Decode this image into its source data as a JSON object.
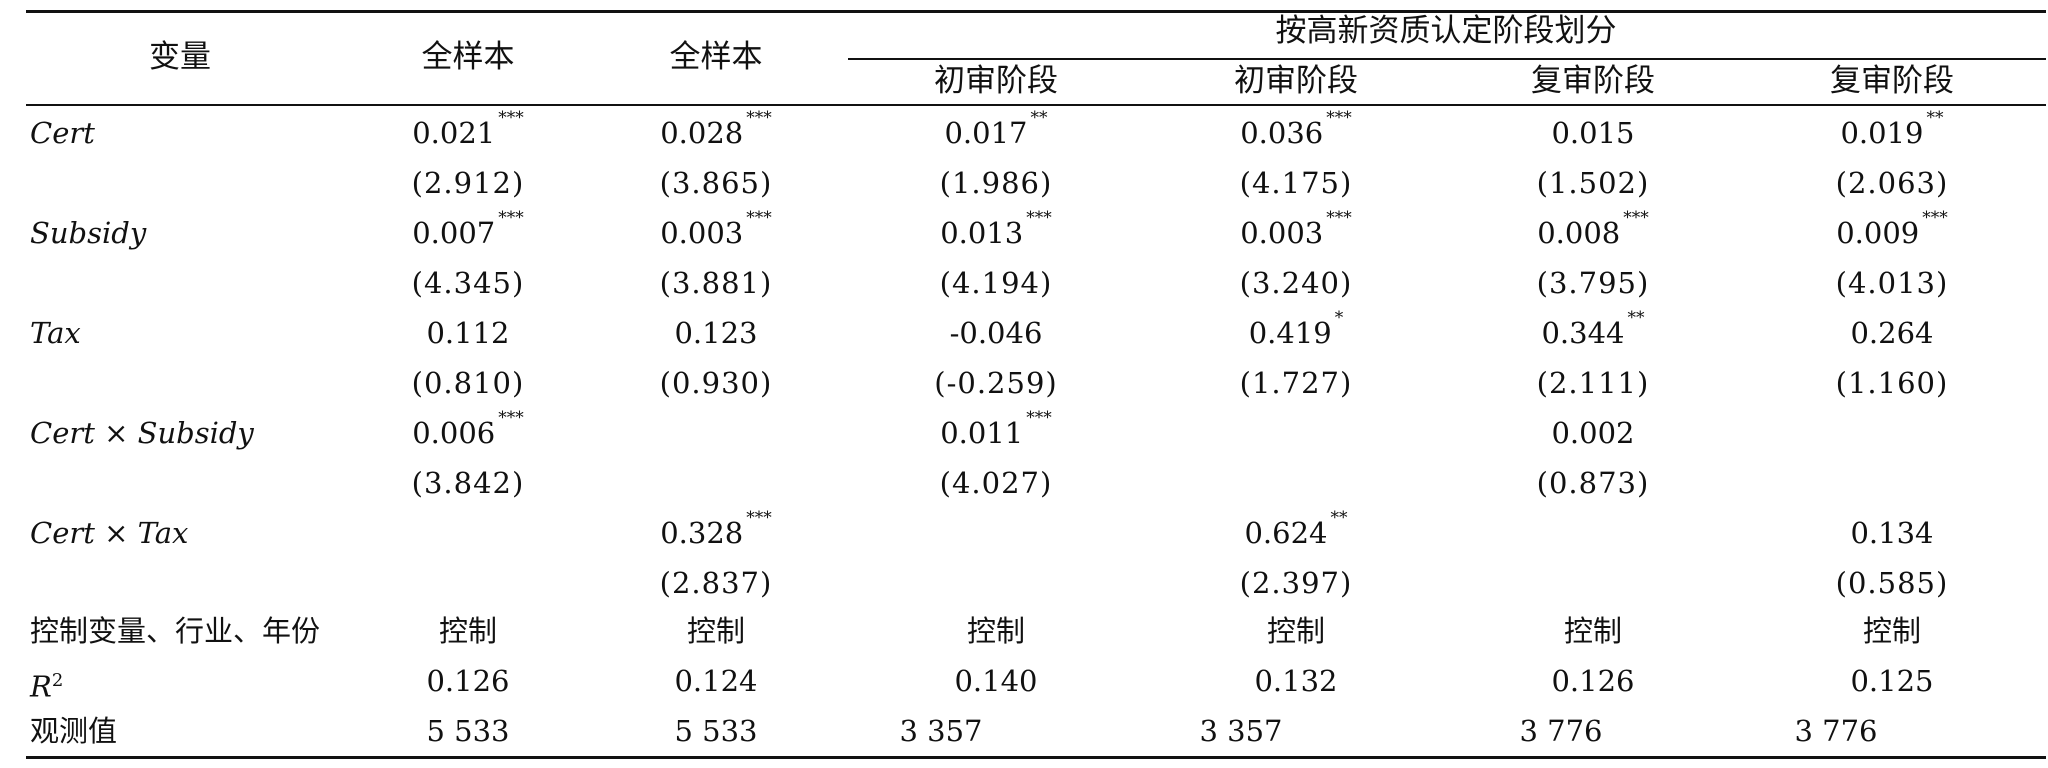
{
  "header": {
    "variable": "变量",
    "full_sample_1": "全样本",
    "full_sample_2": "全样本",
    "group_title": "按高新资质认定阶段划分",
    "stages": [
      "初审阶段",
      "初审阶段",
      "复审阶段",
      "复审阶段"
    ]
  },
  "rows": [
    {
      "label": "Cert",
      "coef": [
        "0.021",
        "0.028",
        "0.017",
        "0.036",
        "0.015",
        "0.019"
      ],
      "stars": [
        "***",
        "***",
        "**",
        "***",
        "",
        "**"
      ],
      "t": [
        "(2.912)",
        "(3.865)",
        "(1.986)",
        "(4.175)",
        "(1.502)",
        "(2.063)"
      ]
    },
    {
      "label": "Subsidy",
      "coef": [
        "0.007",
        "0.003",
        "0.013",
        "0.003",
        "0.008",
        "0.009"
      ],
      "stars": [
        "***",
        "***",
        "***",
        "***",
        "***",
        "***"
      ],
      "t": [
        "(4.345)",
        "(3.881)",
        "(4.194)",
        "(3.240)",
        "(3.795)",
        "(4.013)"
      ]
    },
    {
      "label": "Tax",
      "coef": [
        "0.112",
        "0.123",
        "-0.046",
        "0.419",
        "0.344",
        "0.264"
      ],
      "stars": [
        "",
        "",
        "",
        "*",
        "**",
        ""
      ],
      "t": [
        "(0.810)",
        "(0.930)",
        "(-0.259)",
        "(1.727)",
        "(2.111)",
        "(1.160)"
      ]
    },
    {
      "label": "Cert × Subsidy",
      "coef": [
        "0.006",
        "",
        "0.011",
        "",
        "0.002",
        ""
      ],
      "stars": [
        "***",
        "",
        "***",
        "",
        "",
        ""
      ],
      "t": [
        "(3.842)",
        "",
        "(4.027)",
        "",
        "(0.873)",
        ""
      ]
    },
    {
      "label": "Cert × Tax",
      "coef": [
        "",
        "0.328",
        "",
        "0.624",
        "",
        "0.134"
      ],
      "stars": [
        "",
        "***",
        "",
        "**",
        "",
        ""
      ],
      "t": [
        "",
        "(2.837)",
        "",
        "(2.397)",
        "",
        "(0.585)"
      ]
    }
  ],
  "controls": {
    "label": "控制变量、行业、年份",
    "values": [
      "控制",
      "控制",
      "控制",
      "控制",
      "控制",
      "控制"
    ]
  },
  "r2": {
    "label": "R",
    "label_sup": "2",
    "values": [
      "0.126",
      "0.124",
      "0.140",
      "0.132",
      "0.126",
      "0.125"
    ]
  },
  "obs": {
    "label": "观测值",
    "values": [
      "5 533",
      "5 533",
      "3 357",
      "3 357",
      "3 776",
      "3 776"
    ]
  }
}
